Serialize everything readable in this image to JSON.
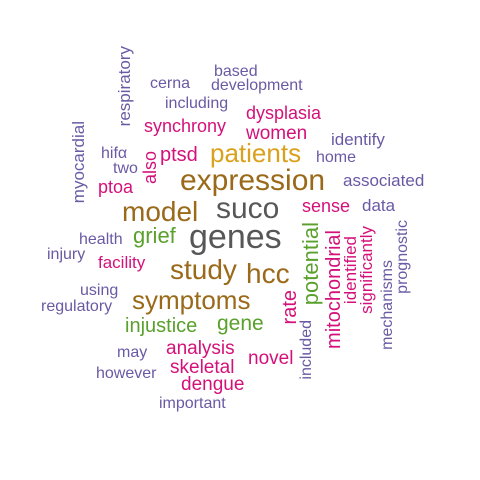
{
  "palette": {
    "gray": "#575757",
    "brown": "#9a6a1a",
    "gold": "#d9a11c",
    "green": "#5aa02c",
    "magenta": "#d4117a",
    "purple": "#6a5aa4"
  },
  "words": [
    {
      "text": "based",
      "color": "purple"
    },
    {
      "text": "cerna",
      "color": "purple"
    },
    {
      "text": "development",
      "color": "purple"
    },
    {
      "text": "respiratory",
      "color": "purple"
    },
    {
      "text": "including",
      "color": "purple"
    },
    {
      "text": "dysplasia",
      "color": "magenta"
    },
    {
      "text": "synchrony",
      "color": "magenta"
    },
    {
      "text": "women",
      "color": "magenta"
    },
    {
      "text": "identify",
      "color": "purple"
    },
    {
      "text": "myocardial",
      "color": "purple"
    },
    {
      "text": "hifα",
      "color": "purple"
    },
    {
      "text": "two",
      "color": "purple"
    },
    {
      "text": "also",
      "color": "magenta"
    },
    {
      "text": "ptsd",
      "color": "magenta"
    },
    {
      "text": "patients",
      "color": "gold"
    },
    {
      "text": "home",
      "color": "purple"
    },
    {
      "text": "ptoa",
      "color": "magenta"
    },
    {
      "text": "expression",
      "color": "brown"
    },
    {
      "text": "associated",
      "color": "purple"
    },
    {
      "text": "model",
      "color": "brown"
    },
    {
      "text": "suco",
      "color": "gray"
    },
    {
      "text": "sense",
      "color": "magenta"
    },
    {
      "text": "data",
      "color": "purple"
    },
    {
      "text": "health",
      "color": "purple"
    },
    {
      "text": "grief",
      "color": "green"
    },
    {
      "text": "genes",
      "color": "gray"
    },
    {
      "text": "injury",
      "color": "purple"
    },
    {
      "text": "facility",
      "color": "magenta"
    },
    {
      "text": "study",
      "color": "brown"
    },
    {
      "text": "hcc",
      "color": "brown"
    },
    {
      "text": "potential",
      "color": "green"
    },
    {
      "text": "mitochondrial",
      "color": "magenta"
    },
    {
      "text": "identified",
      "color": "magenta"
    },
    {
      "text": "significantly",
      "color": "magenta"
    },
    {
      "text": "prognostic",
      "color": "purple"
    },
    {
      "text": "mechanisms",
      "color": "purple"
    },
    {
      "text": "using",
      "color": "purple"
    },
    {
      "text": "symptoms",
      "color": "brown"
    },
    {
      "text": "rate",
      "color": "magenta"
    },
    {
      "text": "regulatory",
      "color": "purple"
    },
    {
      "text": "injustice",
      "color": "green"
    },
    {
      "text": "gene",
      "color": "green"
    },
    {
      "text": "included",
      "color": "purple"
    },
    {
      "text": "may",
      "color": "purple"
    },
    {
      "text": "analysis",
      "color": "magenta"
    },
    {
      "text": "novel",
      "color": "magenta"
    },
    {
      "text": "skeletal",
      "color": "magenta"
    },
    {
      "text": "however",
      "color": "purple"
    },
    {
      "text": "dengue",
      "color": "magenta"
    },
    {
      "text": "important",
      "color": "purple"
    }
  ]
}
